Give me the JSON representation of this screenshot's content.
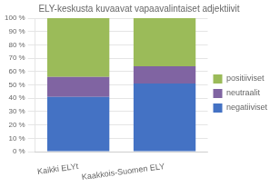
{
  "chart_data": {
    "type": "bar",
    "stacked": true,
    "title": "ELY-keskusta kuvaavat vapaavalintaiset adjektiivit",
    "categories": [
      "Kaikki ELYt",
      "Kaakkois-Suomen ELY"
    ],
    "series": [
      {
        "name": "negatiiviset",
        "color": "#4472C4",
        "values": [
          41,
          51
        ]
      },
      {
        "name": "neutraalit",
        "color": "#8064A2",
        "values": [
          15,
          13
        ]
      },
      {
        "name": "positiiviset",
        "color": "#9BBB59",
        "values": [
          44,
          36
        ]
      }
    ],
    "ylim": [
      0,
      100
    ],
    "yticks": [
      {
        "value": 0,
        "label": "0 %"
      },
      {
        "value": 10,
        "label": "10 %"
      },
      {
        "value": 20,
        "label": "20 %"
      },
      {
        "value": 30,
        "label": "30 %"
      },
      {
        "value": 40,
        "label": "40 %"
      },
      {
        "value": 50,
        "label": "50 %"
      },
      {
        "value": 60,
        "label": "60 %"
      },
      {
        "value": 70,
        "label": "70 %"
      },
      {
        "value": 80,
        "label": "80 %"
      },
      {
        "value": 90,
        "label": "90 %"
      },
      {
        "value": 100,
        "label": "100 %"
      }
    ],
    "grid": true,
    "legend": "right"
  }
}
